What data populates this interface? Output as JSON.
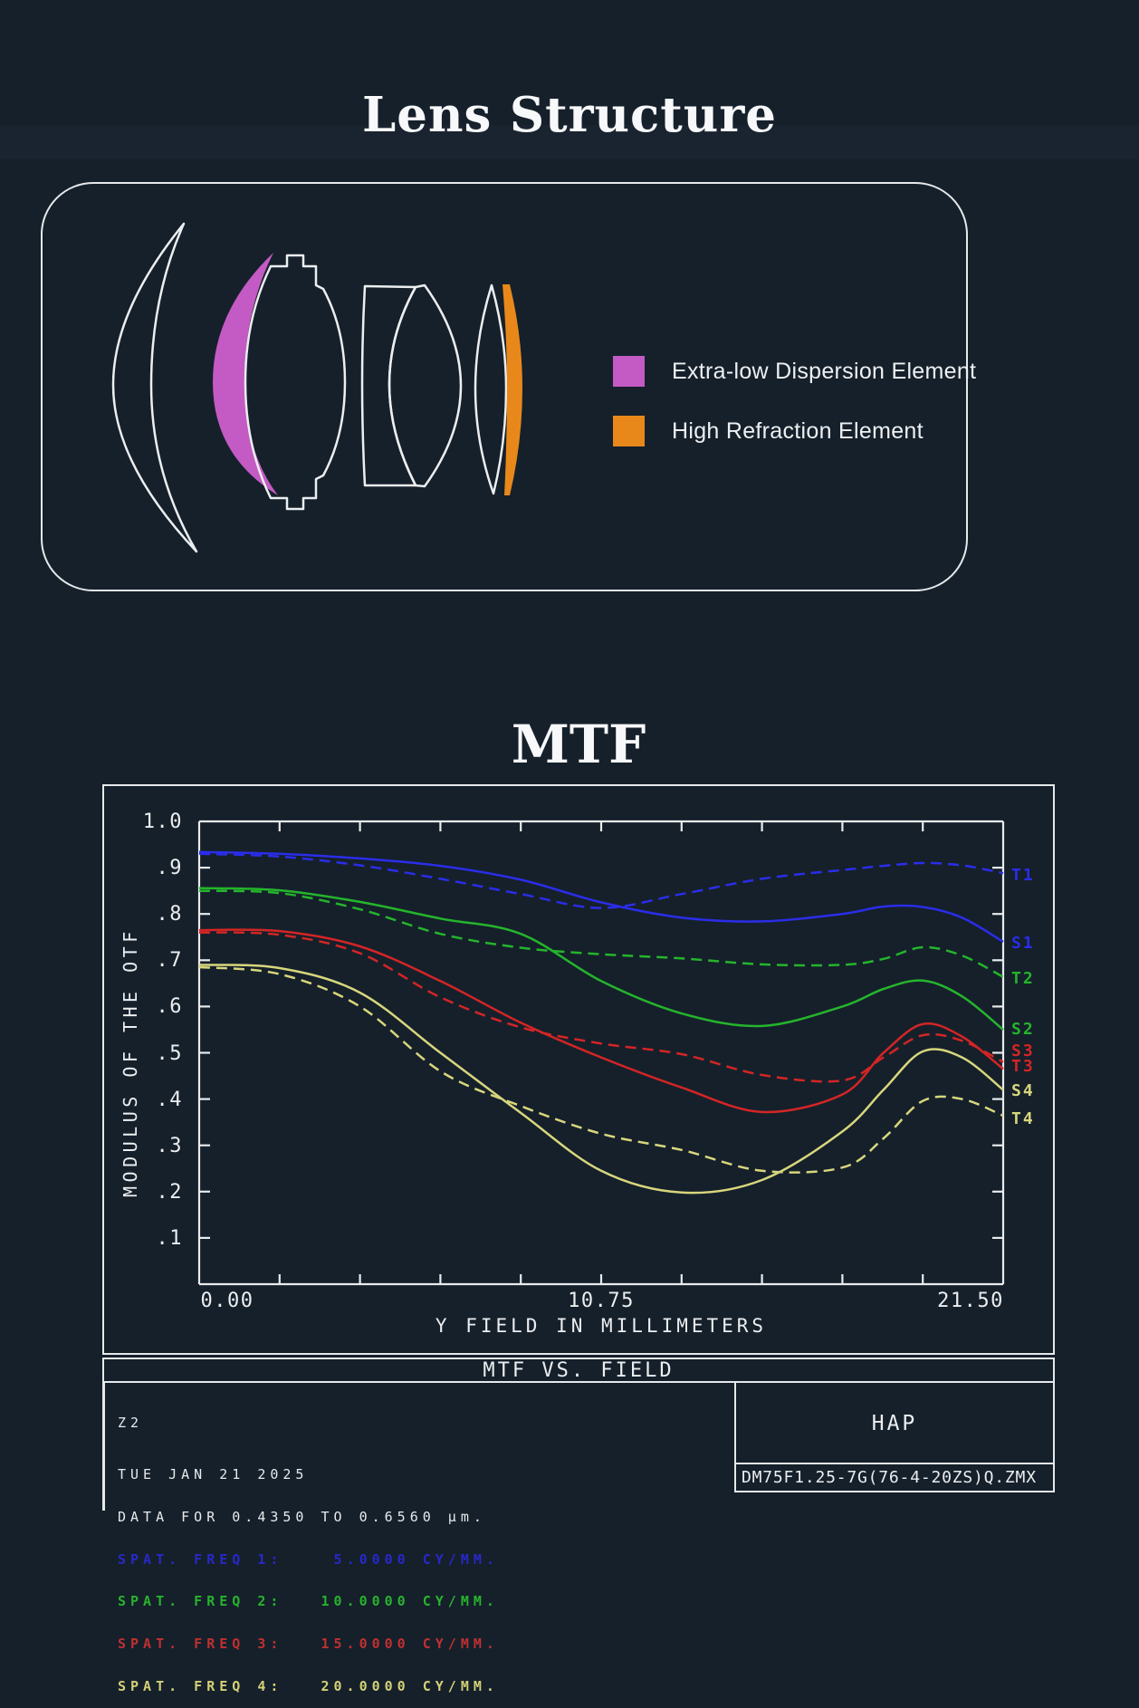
{
  "page": {
    "background": "#15202b"
  },
  "lens_section": {
    "title": "Lens Structure",
    "legend": [
      {
        "id": "ed",
        "label": "Extra-low Dispersion Element",
        "color": "#c45ac4"
      },
      {
        "id": "hr",
        "label": "High Refraction Element",
        "color": "#e8881a"
      }
    ]
  },
  "mtf_section": {
    "title": "MTF"
  },
  "chart_data": {
    "type": "line",
    "title": "MTF VS. FIELD",
    "xlabel": "Y FIELD IN MILLIMETERS",
    "ylabel": "MODULUS OF THE OTF",
    "xlim": [
      0,
      21.5
    ],
    "ylim": [
      0,
      1.0
    ],
    "grid": false,
    "legend_position": "right-edge-labels",
    "x_ticks": [
      {
        "label": "0.00",
        "value": 0
      },
      {
        "label": "10.75",
        "value": 10.75
      },
      {
        "label": "21.50",
        "value": 21.5
      }
    ],
    "x_minor_tick_step": 2.15,
    "y_ticks": [
      {
        "label": "1.0",
        "value": 1.0
      },
      {
        "label": ".9",
        "value": 0.9
      },
      {
        "label": ".8",
        "value": 0.8
      },
      {
        "label": ".7",
        "value": 0.7
      },
      {
        "label": ".6",
        "value": 0.6
      },
      {
        "label": ".5",
        "value": 0.5
      },
      {
        "label": ".4",
        "value": 0.4
      },
      {
        "label": ".3",
        "value": 0.3
      },
      {
        "label": ".2",
        "value": 0.2
      },
      {
        "label": ".1",
        "value": 0.1
      }
    ],
    "x": [
      0,
      2.15,
      4.3,
      6.45,
      8.6,
      10.75,
      12.9,
      15.05,
      17.2,
      18.3,
      19.35,
      20.4,
      21.5
    ],
    "series": [
      {
        "name": "T1",
        "style": "dashed",
        "color": "#2b2de8",
        "label_y": 0.884,
        "values": [
          0.93,
          0.924,
          0.905,
          0.876,
          0.843,
          0.813,
          0.843,
          0.876,
          0.895,
          0.904,
          0.91,
          0.905,
          0.888
        ]
      },
      {
        "name": "S1",
        "style": "solid",
        "color": "#2b2de8",
        "label_y": 0.737,
        "values": [
          0.934,
          0.93,
          0.92,
          0.904,
          0.874,
          0.825,
          0.792,
          0.784,
          0.8,
          0.816,
          0.815,
          0.792,
          0.74
        ]
      },
      {
        "name": "T2",
        "style": "dashed",
        "color": "#25b42c",
        "label_y": 0.662,
        "values": [
          0.85,
          0.845,
          0.81,
          0.757,
          0.727,
          0.713,
          0.704,
          0.691,
          0.69,
          0.703,
          0.728,
          0.71,
          0.664
        ]
      },
      {
        "name": "S2",
        "style": "solid",
        "color": "#25b42c",
        "label_y": 0.552,
        "values": [
          0.856,
          0.851,
          0.826,
          0.79,
          0.757,
          0.655,
          0.585,
          0.558,
          0.6,
          0.638,
          0.656,
          0.622,
          0.55
        ]
      },
      {
        "name": "S3",
        "style": "solid",
        "color": "#d42525",
        "label_y": 0.505,
        "values": [
          0.765,
          0.763,
          0.73,
          0.655,
          0.565,
          0.49,
          0.425,
          0.372,
          0.41,
          0.5,
          0.562,
          0.535,
          0.465
        ]
      },
      {
        "name": "T3",
        "style": "dashed",
        "color": "#d42525",
        "label_y": 0.472,
        "values": [
          0.76,
          0.755,
          0.715,
          0.62,
          0.555,
          0.52,
          0.497,
          0.452,
          0.44,
          0.49,
          0.538,
          0.526,
          0.48
        ]
      },
      {
        "name": "S4",
        "style": "solid",
        "color": "#d8d67c",
        "label_y": 0.418,
        "values": [
          0.69,
          0.683,
          0.63,
          0.5,
          0.37,
          0.245,
          0.198,
          0.225,
          0.33,
          0.42,
          0.503,
          0.49,
          0.42
        ]
      },
      {
        "name": "T4",
        "style": "dashed",
        "color": "#d8d67c",
        "label_y": 0.358,
        "values": [
          0.685,
          0.67,
          0.6,
          0.46,
          0.385,
          0.325,
          0.29,
          0.245,
          0.252,
          0.315,
          0.396,
          0.4,
          0.364
        ]
      }
    ]
  },
  "footer": {
    "config_label": "Z2",
    "date": "TUE JAN 21 2025",
    "data_range": "DATA FOR 0.4350 TO 0.6560 µm.",
    "spatial_freqs": [
      {
        "text": "SPAT. FREQ 1:    5.0000 CY/MM.",
        "color": "#2828c8"
      },
      {
        "text": "SPAT. FREQ 2:   10.0000 CY/MM.",
        "color": "#28b32c"
      },
      {
        "text": "SPAT. FREQ 3:   15.0000 CY/MM.",
        "color": "#c03030"
      },
      {
        "text": "SPAT. FREQ 4:   20.0000 CY/MM.",
        "color": "#d3d075"
      }
    ],
    "program": "HAP",
    "filename": "DM75F1.25-7G(76-4-20ZS)Q.ZMX"
  }
}
